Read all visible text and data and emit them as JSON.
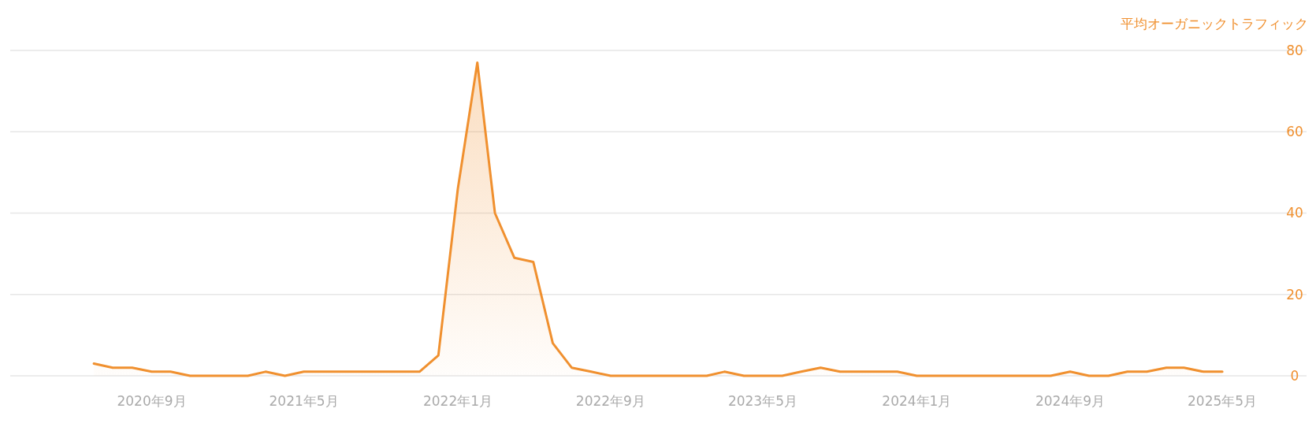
{
  "chart_data": {
    "type": "area",
    "ylabel": "平均オーガニックトラフィック",
    "x": [
      "2020-06",
      "2020-07",
      "2020-08",
      "2020-09",
      "2020-10",
      "2020-11",
      "2020-12",
      "2021-01",
      "2021-02",
      "2021-03",
      "2021-04",
      "2021-05",
      "2021-06",
      "2021-07",
      "2021-08",
      "2021-09",
      "2021-10",
      "2021-11",
      "2021-12",
      "2022-01",
      "2022-02",
      "2022-03",
      "2022-04",
      "2022-05",
      "2022-06",
      "2022-07",
      "2022-08",
      "2022-09",
      "2022-10",
      "2022-11",
      "2022-12",
      "2023-01",
      "2023-02",
      "2023-03",
      "2023-04",
      "2023-05",
      "2023-06",
      "2023-07",
      "2023-08",
      "2023-09",
      "2023-10",
      "2023-11",
      "2023-12",
      "2024-01",
      "2024-02",
      "2024-03",
      "2024-04",
      "2024-05",
      "2024-06",
      "2024-07",
      "2024-08",
      "2024-09",
      "2024-10",
      "2024-11",
      "2024-12",
      "2025-01",
      "2025-02",
      "2025-03",
      "2025-04",
      "2025-05"
    ],
    "series": [
      {
        "color": "#f0902f",
        "values": [
          3,
          2,
          2,
          1,
          1,
          0,
          0,
          0,
          0,
          1,
          0,
          1,
          1,
          1,
          1,
          1,
          1,
          1,
          5,
          46,
          77,
          40,
          29,
          28,
          8,
          2,
          1,
          0,
          0,
          0,
          0,
          0,
          0,
          1,
          0,
          0,
          0,
          1,
          2,
          1,
          1,
          1,
          1,
          0,
          0,
          0,
          0,
          0,
          0,
          0,
          0,
          1,
          0,
          0,
          1,
          1,
          2,
          2,
          1,
          1
        ]
      }
    ],
    "xlim": [
      "2020-01-20",
      "2025-09-12"
    ],
    "xticks": [
      {
        "value": "2020-09",
        "label": "2020年9月"
      },
      {
        "value": "2021-05",
        "label": "2021年5月"
      },
      {
        "value": "2022-01",
        "label": "2022年1月"
      },
      {
        "value": "2022-09",
        "label": "2022年9月"
      },
      {
        "value": "2023-05",
        "label": "2023年5月"
      },
      {
        "value": "2024-01",
        "label": "2024年1月"
      },
      {
        "value": "2024-09",
        "label": "2024年9月"
      },
      {
        "value": "2025-05",
        "label": "2025年5月"
      }
    ],
    "ylim": [
      0,
      80
    ],
    "yticks": [
      0,
      20,
      40,
      60,
      80
    ],
    "grid": "y"
  }
}
